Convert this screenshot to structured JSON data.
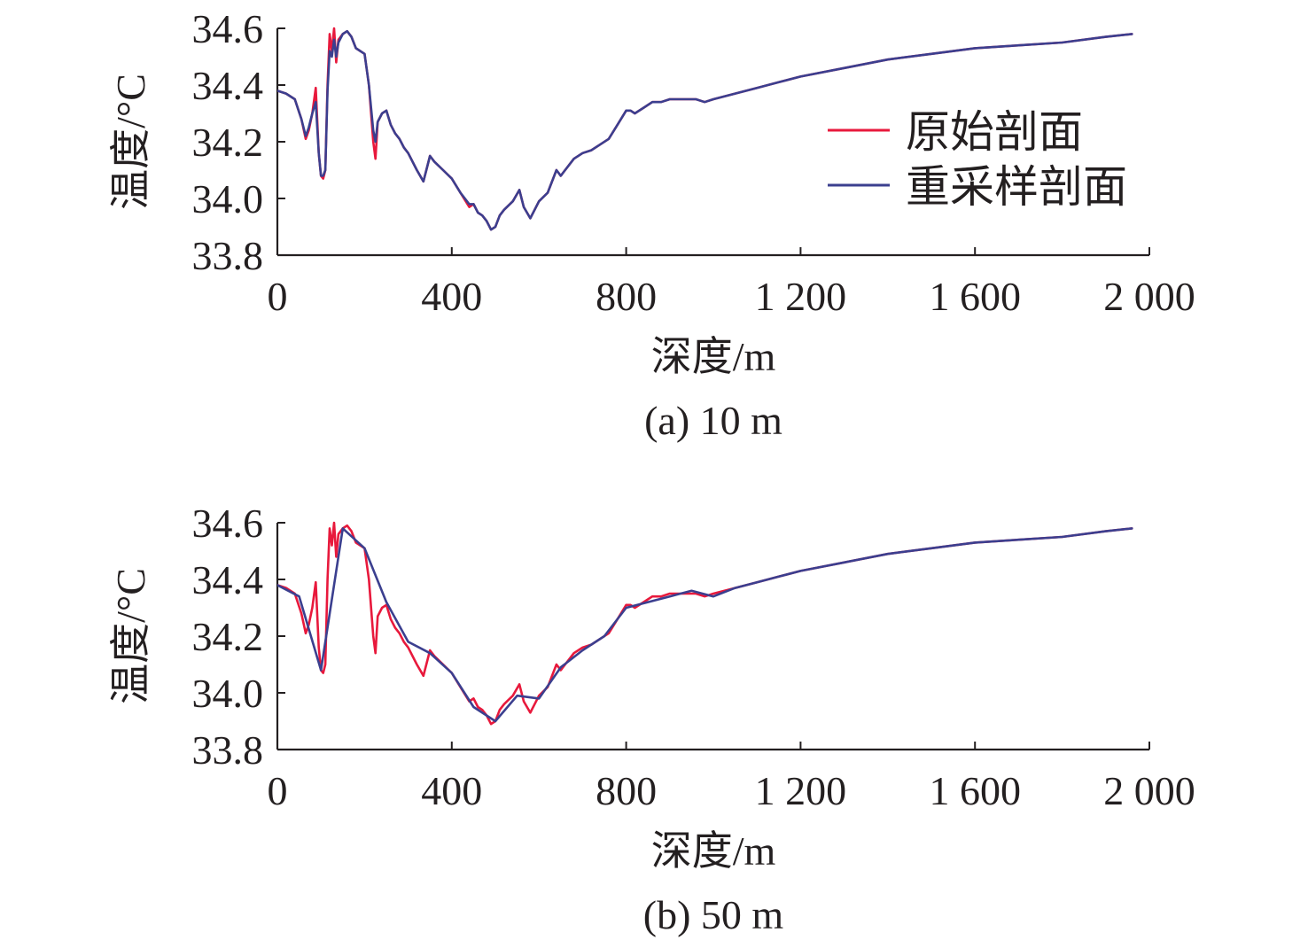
{
  "colors": {
    "original": "#e8193c",
    "resampled": "#3b3f8f",
    "axis": "#231f20"
  },
  "chart_data": [
    {
      "type": "line",
      "caption": "(a) 10 m",
      "xlabel": "深度/m",
      "ylabel": "温度/°C",
      "xlim": [
        0,
        2000
      ],
      "ylim": [
        33.8,
        34.6
      ],
      "xticks": [
        0,
        400,
        800,
        1200,
        1600,
        2000
      ],
      "xtick_labels": [
        "0",
        "400",
        "800",
        "1 200",
        "1 600",
        "2 000"
      ],
      "yticks": [
        33.8,
        34.0,
        34.2,
        34.4,
        34.6
      ],
      "ytick_labels": [
        "33.8",
        "34.0",
        "34.2",
        "34.4",
        "34.6"
      ],
      "legend_position": "top-right",
      "series": [
        {
          "name": "原始剖面",
          "color": "#e8193c",
          "x": [
            0,
            20,
            40,
            55,
            65,
            72,
            80,
            88,
            95,
            100,
            105,
            110,
            115,
            120,
            125,
            130,
            135,
            140,
            150,
            160,
            170,
            180,
            200,
            210,
            220,
            225,
            230,
            240,
            250,
            260,
            270,
            280,
            290,
            300,
            320,
            335,
            350,
            360,
            380,
            400,
            420,
            440,
            450,
            460,
            470,
            480,
            490,
            500,
            510,
            520,
            540,
            555,
            565,
            580,
            590,
            600,
            620,
            640,
            650,
            660,
            680,
            700,
            720,
            740,
            760,
            780,
            800,
            810,
            820,
            840,
            860,
            880,
            900,
            920,
            940,
            960,
            980,
            1000,
            1050,
            1100,
            1150,
            1200,
            1300,
            1400,
            1500,
            1600,
            1700,
            1800,
            1900,
            1960
          ],
          "y": [
            34.38,
            34.37,
            34.35,
            34.28,
            34.21,
            34.24,
            34.3,
            34.39,
            34.16,
            34.08,
            34.07,
            34.1,
            34.4,
            34.58,
            34.52,
            34.6,
            34.48,
            34.56,
            34.58,
            34.59,
            34.57,
            34.53,
            34.51,
            34.4,
            34.2,
            34.14,
            34.27,
            34.3,
            34.31,
            34.26,
            34.23,
            34.21,
            34.18,
            34.16,
            34.1,
            34.06,
            34.15,
            34.13,
            34.1,
            34.07,
            34.02,
            33.97,
            33.98,
            33.95,
            33.94,
            33.92,
            33.89,
            33.9,
            33.94,
            33.96,
            33.99,
            34.03,
            33.97,
            33.93,
            33.96,
            33.99,
            34.02,
            34.1,
            34.08,
            34.1,
            34.14,
            34.16,
            34.17,
            34.19,
            34.21,
            34.26,
            34.31,
            34.31,
            34.3,
            34.32,
            34.34,
            34.34,
            34.35,
            34.35,
            34.35,
            34.35,
            34.34,
            34.35,
            34.37,
            34.39,
            34.41,
            34.43,
            34.46,
            34.49,
            34.51,
            34.53,
            34.54,
            34.55,
            34.57,
            34.58
          ]
        },
        {
          "name": "重采样剖面",
          "color": "#3b3f8f",
          "x": [
            0,
            20,
            40,
            55,
            65,
            72,
            80,
            88,
            95,
            100,
            105,
            110,
            115,
            120,
            125,
            130,
            135,
            140,
            150,
            160,
            170,
            180,
            200,
            210,
            220,
            225,
            230,
            240,
            250,
            260,
            270,
            280,
            290,
            300,
            320,
            335,
            350,
            360,
            380,
            400,
            420,
            440,
            450,
            460,
            470,
            480,
            490,
            500,
            510,
            520,
            540,
            555,
            565,
            580,
            590,
            600,
            620,
            640,
            650,
            660,
            680,
            700,
            720,
            740,
            760,
            780,
            800,
            810,
            820,
            840,
            860,
            880,
            900,
            920,
            940,
            960,
            980,
            1000,
            1050,
            1100,
            1150,
            1200,
            1300,
            1400,
            1500,
            1600,
            1700,
            1800,
            1900,
            1960
          ],
          "y": [
            34.38,
            34.37,
            34.35,
            34.28,
            34.22,
            34.25,
            34.3,
            34.34,
            34.16,
            34.08,
            34.08,
            34.1,
            34.38,
            34.52,
            34.5,
            34.56,
            34.5,
            34.55,
            34.58,
            34.59,
            34.57,
            34.53,
            34.51,
            34.4,
            34.24,
            34.2,
            34.27,
            34.3,
            34.31,
            34.26,
            34.23,
            34.21,
            34.18,
            34.16,
            34.1,
            34.06,
            34.15,
            34.13,
            34.1,
            34.07,
            34.02,
            33.98,
            33.98,
            33.95,
            33.94,
            33.92,
            33.89,
            33.9,
            33.94,
            33.96,
            33.99,
            34.03,
            33.97,
            33.93,
            33.96,
            33.99,
            34.02,
            34.1,
            34.08,
            34.1,
            34.14,
            34.16,
            34.17,
            34.19,
            34.21,
            34.26,
            34.31,
            34.31,
            34.3,
            34.32,
            34.34,
            34.34,
            34.35,
            34.35,
            34.35,
            34.35,
            34.34,
            34.35,
            34.37,
            34.39,
            34.41,
            34.43,
            34.46,
            34.49,
            34.51,
            34.53,
            34.54,
            34.55,
            34.57,
            34.58
          ]
        }
      ]
    },
    {
      "type": "line",
      "caption": "(b) 50 m",
      "xlabel": "深度/m",
      "ylabel": "温度/°C",
      "xlim": [
        0,
        2000
      ],
      "ylim": [
        33.8,
        34.6
      ],
      "xticks": [
        0,
        400,
        800,
        1200,
        1600,
        2000
      ],
      "xtick_labels": [
        "0",
        "400",
        "800",
        "1 200",
        "1 600",
        "2 000"
      ],
      "yticks": [
        33.8,
        34.0,
        34.2,
        34.4,
        34.6
      ],
      "ytick_labels": [
        "33.8",
        "34.0",
        "34.2",
        "34.4",
        "34.6"
      ],
      "series": [
        {
          "name": "原始剖面",
          "color": "#e8193c",
          "x": [
            0,
            20,
            40,
            55,
            65,
            72,
            80,
            88,
            95,
            100,
            105,
            110,
            115,
            120,
            125,
            130,
            135,
            140,
            150,
            160,
            170,
            180,
            200,
            210,
            220,
            225,
            230,
            240,
            250,
            260,
            270,
            280,
            290,
            300,
            320,
            335,
            350,
            360,
            380,
            400,
            420,
            440,
            450,
            460,
            470,
            480,
            490,
            500,
            510,
            520,
            540,
            555,
            565,
            580,
            590,
            600,
            620,
            640,
            650,
            660,
            680,
            700,
            720,
            740,
            760,
            780,
            800,
            810,
            820,
            840,
            860,
            880,
            900,
            920,
            940,
            960,
            980,
            1000,
            1050,
            1100,
            1150,
            1200,
            1300,
            1400,
            1500,
            1600,
            1700,
            1800,
            1900,
            1960
          ],
          "y": [
            34.38,
            34.37,
            34.35,
            34.28,
            34.21,
            34.24,
            34.3,
            34.39,
            34.16,
            34.08,
            34.07,
            34.1,
            34.4,
            34.58,
            34.52,
            34.6,
            34.48,
            34.56,
            34.58,
            34.59,
            34.57,
            34.53,
            34.51,
            34.4,
            34.2,
            34.14,
            34.27,
            34.3,
            34.31,
            34.26,
            34.23,
            34.21,
            34.18,
            34.16,
            34.1,
            34.06,
            34.15,
            34.13,
            34.1,
            34.07,
            34.02,
            33.97,
            33.98,
            33.95,
            33.94,
            33.92,
            33.89,
            33.9,
            33.94,
            33.96,
            33.99,
            34.03,
            33.97,
            33.93,
            33.96,
            33.99,
            34.02,
            34.1,
            34.08,
            34.1,
            34.14,
            34.16,
            34.17,
            34.19,
            34.21,
            34.26,
            34.31,
            34.31,
            34.3,
            34.32,
            34.34,
            34.34,
            34.35,
            34.35,
            34.35,
            34.35,
            34.34,
            34.35,
            34.37,
            34.39,
            34.41,
            34.43,
            34.46,
            34.49,
            34.51,
            34.53,
            34.54,
            34.55,
            34.57,
            34.58
          ]
        },
        {
          "name": "重采样剖面",
          "color": "#3b3f8f",
          "x": [
            0,
            50,
            100,
            150,
            200,
            250,
            300,
            350,
            400,
            450,
            500,
            550,
            600,
            650,
            700,
            750,
            800,
            850,
            900,
            950,
            1000,
            1050,
            1100,
            1150,
            1200,
            1300,
            1400,
            1500,
            1600,
            1700,
            1800,
            1900,
            1960
          ],
          "y": [
            34.38,
            34.34,
            34.08,
            34.58,
            34.51,
            34.32,
            34.18,
            34.14,
            34.07,
            33.95,
            33.9,
            33.99,
            33.98,
            34.09,
            34.15,
            34.2,
            34.3,
            34.32,
            34.34,
            34.36,
            34.34,
            34.37,
            34.39,
            34.41,
            34.43,
            34.46,
            34.49,
            34.51,
            34.53,
            34.54,
            34.55,
            34.57,
            34.58
          ]
        }
      ]
    }
  ]
}
